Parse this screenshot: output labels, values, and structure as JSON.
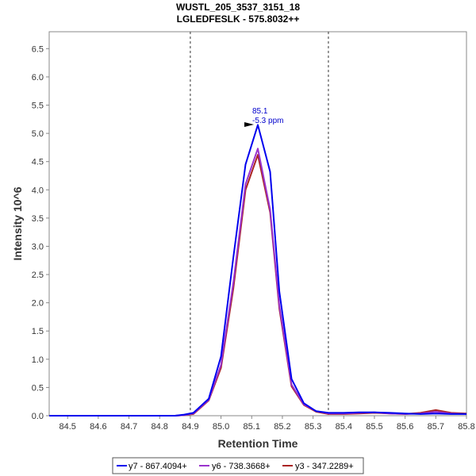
{
  "chart_data": {
    "type": "line",
    "title": "WUSTL_205_3537_3151_18",
    "subtitle": "LGLEDFESLK - 575.8032++",
    "xlabel": "Retention Time",
    "ylabel": "Intensity 10^6",
    "xlim": [
      84.44,
      85.8
    ],
    "ylim": [
      0,
      6.8
    ],
    "x_ticks": [
      "84.5",
      "84.6",
      "84.7",
      "84.8",
      "84.9",
      "85.0",
      "85.1",
      "85.2",
      "85.3",
      "85.4",
      "85.5",
      "85.6",
      "85.7",
      "85.8"
    ],
    "y_ticks": [
      "0.0",
      "0.5",
      "1.0",
      "1.5",
      "2.0",
      "2.5",
      "3.0",
      "3.5",
      "4.0",
      "4.5",
      "5.0",
      "5.5",
      "6.0",
      "6.5"
    ],
    "vlines": [
      84.9,
      85.35
    ],
    "annotation": {
      "x": 85.12,
      "y": 5.15,
      "line1": "85.1",
      "line2": "-5.3 ppm",
      "color": "#0000cc"
    },
    "series": [
      {
        "name": "y7 - 867.4094+",
        "color": "#0000ee",
        "x": [
          84.44,
          84.85,
          84.88,
          84.91,
          84.96,
          85.0,
          85.04,
          85.08,
          85.12,
          85.16,
          85.19,
          85.23,
          85.27,
          85.31,
          85.35,
          85.4,
          85.45,
          85.5,
          85.55,
          85.6,
          85.65,
          85.7,
          85.75,
          85.8
        ],
        "values": [
          0.0,
          0.0,
          0.02,
          0.05,
          0.3,
          1.05,
          2.8,
          4.45,
          5.15,
          4.32,
          2.2,
          0.65,
          0.22,
          0.08,
          0.05,
          0.05,
          0.06,
          0.06,
          0.05,
          0.04,
          0.03,
          0.04,
          0.03,
          0.03
        ]
      },
      {
        "name": "y6 - 738.3668+",
        "color": "#9933cc",
        "x": [
          84.44,
          84.85,
          84.88,
          84.91,
          84.96,
          85.0,
          85.04,
          85.08,
          85.12,
          85.16,
          85.19,
          85.23,
          85.27,
          85.31,
          85.35,
          85.4,
          85.45,
          85.5,
          85.55,
          85.6,
          85.65,
          85.7,
          85.75,
          85.8
        ],
        "values": [
          0.0,
          0.0,
          0.01,
          0.04,
          0.28,
          0.9,
          2.35,
          4.1,
          4.73,
          3.65,
          1.95,
          0.55,
          0.2,
          0.08,
          0.04,
          0.04,
          0.05,
          0.06,
          0.04,
          0.03,
          0.04,
          0.07,
          0.04,
          0.03
        ]
      },
      {
        "name": "y3 - 347.2289+",
        "color": "#aa2222",
        "x": [
          84.44,
          84.85,
          84.88,
          84.91,
          84.96,
          85.0,
          85.04,
          85.08,
          85.12,
          85.16,
          85.19,
          85.23,
          85.27,
          85.31,
          85.35,
          85.4,
          85.45,
          85.5,
          85.55,
          85.6,
          85.65,
          85.7,
          85.75,
          85.8
        ],
        "values": [
          0.0,
          0.0,
          0.01,
          0.03,
          0.27,
          0.85,
          2.25,
          4.0,
          4.62,
          3.6,
          1.9,
          0.52,
          0.19,
          0.07,
          0.03,
          0.03,
          0.04,
          0.05,
          0.04,
          0.03,
          0.05,
          0.1,
          0.05,
          0.04
        ]
      }
    ]
  }
}
